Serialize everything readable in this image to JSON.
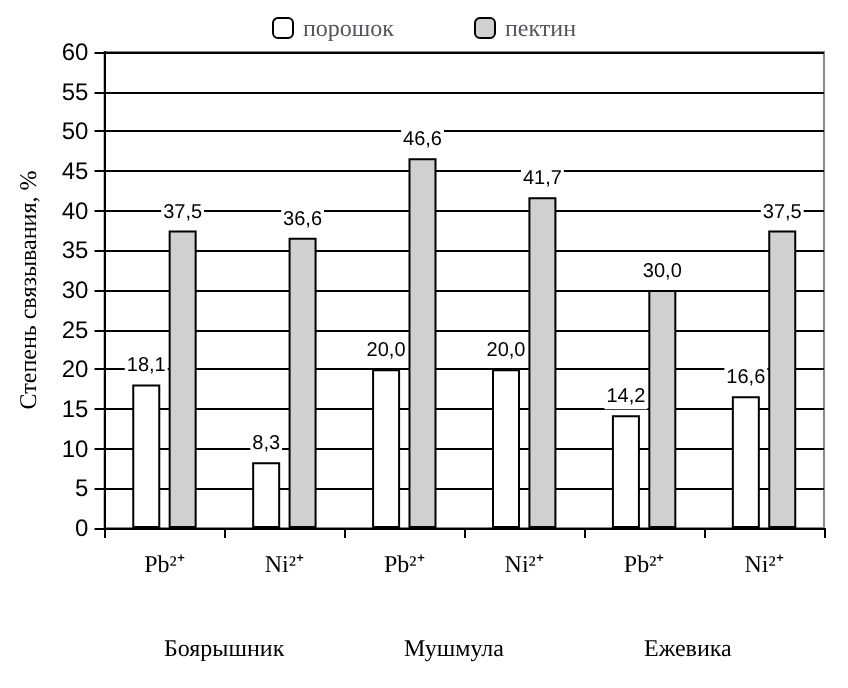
{
  "chart_data": {
    "type": "bar",
    "ylabel": "Степень связывания, %",
    "categories": [
      "Pb²⁺",
      "Ni²⁺",
      "Pb²⁺",
      "Ni²⁺",
      "Pb²⁺",
      "Ni²⁺"
    ],
    "series": [
      {
        "name": "порошок",
        "color": "#ffffff",
        "values": [
          18.1,
          8.3,
          20.0,
          20.0,
          14.2,
          16.6
        ],
        "value_labels": [
          "18,1",
          "8,3",
          "20,0",
          "20,0",
          "14,2",
          "16,6"
        ]
      },
      {
        "name": "пектин",
        "color": "#d0d0d0",
        "values": [
          37.5,
          36.6,
          46.6,
          41.7,
          30.0,
          37.5
        ],
        "value_labels": [
          "37,5",
          "36,6",
          "46,6",
          "41,7",
          "30,0",
          "37,5"
        ]
      }
    ],
    "annotations": [
      "Боярышник",
      "Мушмула",
      "Ежевика"
    ],
    "ylim": [
      0,
      60
    ],
    "yticks": [
      0,
      5,
      10,
      15,
      20,
      25,
      30,
      35,
      40,
      45,
      50,
      55,
      60
    ],
    "grid": "y",
    "legend": "top"
  }
}
